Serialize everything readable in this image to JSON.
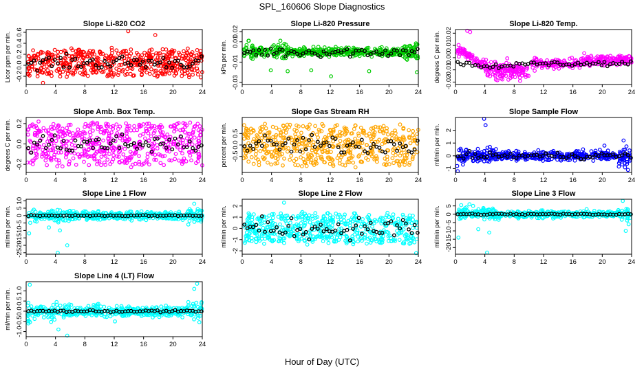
{
  "figure": {
    "title": "SPL_160606  Slope Diagnostics",
    "xlabel": "Hour of Day (UTC)"
  },
  "colors": {
    "red": "#ff0000",
    "green": "#00cc00",
    "magenta": "#ff00ff",
    "orange": "#ffa500",
    "blue": "#0000ff",
    "cyan": "#00ffff",
    "black": "#000000"
  },
  "chart_data": [
    {
      "type": "scatter",
      "title": "Slope Li-820 CO2",
      "ylabel": "Licor ppm per min.",
      "xlim": [
        0,
        24
      ],
      "ylim": [
        -0.35,
        0.65
      ],
      "yticks": [
        "-0.2",
        "0.0",
        "0.2",
        "0.4",
        "0.6"
      ],
      "ytick_values": [
        -0.2,
        0,
        0.2,
        0.4,
        0.6
      ],
      "xticks": [
        0,
        4,
        8,
        12,
        16,
        20,
        24
      ],
      "color": "red",
      "pattern": "uniform",
      "center": 0.05,
      "spread": 0.24,
      "outliers": [
        [
          13.9,
          0.62
        ],
        [
          17.6,
          0.55
        ],
        [
          2.3,
          -0.32
        ],
        [
          23.8,
          -0.22
        ]
      ],
      "black_center": 0.05,
      "black_spread": 0.12
    },
    {
      "type": "scatter",
      "title": "Slope Li-820 Pressure",
      "ylabel": "kPa per min.",
      "xlim": [
        0,
        24
      ],
      "ylim": [
        -0.032,
        0.022
      ],
      "yticks": [
        "-0.03",
        "-0.01",
        "0.01",
        "0.02"
      ],
      "ytick_values": [
        -0.03,
        -0.01,
        0.01,
        0.02
      ],
      "xticks": [
        0,
        4,
        8,
        12,
        16,
        20,
        24
      ],
      "color": "green",
      "pattern": "flat",
      "center": 0.0,
      "spread": 0.004,
      "outliers": [
        [
          3.9,
          -0.018
        ],
        [
          6.2,
          -0.019
        ],
        [
          9.4,
          -0.018
        ],
        [
          12.1,
          -0.024
        ],
        [
          17.3,
          -0.019
        ],
        [
          23.8,
          -0.02
        ],
        [
          0.9,
          0.011
        ],
        [
          5.2,
          0.011
        ]
      ],
      "black_center": 0.0,
      "black_spread": 0.005
    },
    {
      "type": "scatter",
      "title": "Slope Li-820 Temp.",
      "ylabel": "degrees C per min.",
      "xlim": [
        0,
        24
      ],
      "ylim": [
        -0.022,
        0.023
      ],
      "yticks": [
        "-0.02",
        "-0.01",
        "0.00",
        "0.01",
        "0.02"
      ],
      "ytick_values": [
        -0.02,
        -0.01,
        0,
        0.01,
        0.02
      ],
      "xticks": [
        0,
        4,
        8,
        12,
        16,
        20,
        24
      ],
      "color": "magenta",
      "pattern": "temp",
      "center": -0.005,
      "spread": 0.004,
      "outliers": [
        [
          1.6,
          0.022
        ],
        [
          2.0,
          0.021
        ],
        [
          5.5,
          -0.018
        ],
        [
          8.8,
          -0.019
        ]
      ],
      "black_center": -0.005,
      "black_spread": 0.002
    },
    {
      "type": "scatter",
      "title": "Slope Amb. Box Temp.",
      "ylabel": "degrees C per min.",
      "xlim": [
        0,
        24
      ],
      "ylim": [
        -0.28,
        0.26
      ],
      "yticks": [
        "-0.2",
        "0.0",
        "0.2"
      ],
      "ytick_values": [
        -0.2,
        0,
        0.2
      ],
      "xticks": [
        0,
        4,
        8,
        12,
        16,
        20,
        24
      ],
      "color": "magenta",
      "pattern": "uniform",
      "center": 0.0,
      "spread": 0.2,
      "outliers": [],
      "black_center": 0.0,
      "black_spread": 0.1
    },
    {
      "type": "scatter",
      "title": "Slope Gas Stream RH",
      "ylabel": "percent per min.",
      "xlim": [
        0,
        24
      ],
      "ylim": [
        -1.2,
        1.2
      ],
      "yticks": [
        "-0.5",
        "0.0",
        "0.5"
      ],
      "ytick_values": [
        -0.5,
        0,
        0.5
      ],
      "xticks": [
        0,
        4,
        8,
        12,
        16,
        20,
        24
      ],
      "color": "orange",
      "pattern": "uniform",
      "center": 0.0,
      "spread": 0.85,
      "outliers": [],
      "black_center": 0.0,
      "black_spread": 0.4
    },
    {
      "type": "scatter",
      "title": "Slope Sample Flow",
      "ylabel": "ml/min per min.",
      "xlim": [
        0,
        24
      ],
      "ylim": [
        -1.3,
        3.0
      ],
      "yticks": [
        "-1",
        "0",
        "1",
        "2"
      ],
      "ytick_values": [
        -1,
        0,
        1,
        2
      ],
      "xticks": [
        0,
        4,
        8,
        12,
        16,
        20,
        24
      ],
      "color": "blue",
      "pattern": "flat",
      "center": 0.0,
      "spread": 0.35,
      "outliers": [
        [
          3.9,
          2.9
        ],
        [
          4.1,
          2.4
        ],
        [
          0.3,
          -1.2
        ],
        [
          23.5,
          -1.1
        ],
        [
          23.1,
          -0.9
        ],
        [
          22.9,
          1.2
        ],
        [
          20.3,
          0.8
        ]
      ],
      "black_center": 0.0,
      "black_spread": 0.25
    },
    {
      "type": "scatter",
      "title": "Slope Line 1 Flow",
      "ylabel": "ml/min per min.",
      "xlim": [
        0,
        24
      ],
      "ylim": [
        -26,
        11
      ],
      "yticks": [
        "-25",
        "-20",
        "-15",
        "-10",
        "-5",
        "0",
        "5",
        "10"
      ],
      "ytick_values": [
        -25,
        -20,
        -15,
        -10,
        -5,
        0,
        5,
        10
      ],
      "xticks": [
        0,
        4,
        8,
        12,
        16,
        20,
        24
      ],
      "color": "cyan",
      "pattern": "flat",
      "center": 0.0,
      "spread": 2.5,
      "outliers": [
        [
          0.4,
          -12
        ],
        [
          4.3,
          -25
        ],
        [
          4.6,
          -10
        ],
        [
          5.6,
          -20
        ],
        [
          3.1,
          -8
        ],
        [
          22.1,
          -6
        ],
        [
          22.9,
          8
        ],
        [
          23.6,
          -3
        ]
      ],
      "black_center": 0.0,
      "black_spread": 0.4
    },
    {
      "type": "scatter",
      "title": "Slope Line 2 Flow",
      "ylabel": "ml/min per min.",
      "xlim": [
        0,
        24
      ],
      "ylim": [
        -2.3,
        2.6
      ],
      "yticks": [
        "-2",
        "-1",
        "0",
        "1",
        "2"
      ],
      "ytick_values": [
        -2,
        -1,
        0,
        1,
        2
      ],
      "xticks": [
        0,
        4,
        8,
        12,
        16,
        20,
        24
      ],
      "color": "cyan",
      "pattern": "uniform",
      "center": 0.0,
      "spread": 1.3,
      "outliers": [
        [
          23.7,
          -2.2
        ],
        [
          5.7,
          2.3
        ]
      ],
      "black_center": 0.0,
      "black_spread": 0.9
    },
    {
      "type": "scatter",
      "title": "Slope Line 3 Flow",
      "ylabel": "ml/min per min.",
      "xlim": [
        0,
        24
      ],
      "ylim": [
        -24,
        9
      ],
      "yticks": [
        "-20",
        "-15",
        "-10",
        "-5",
        "0",
        "5"
      ],
      "ytick_values": [
        -20,
        -15,
        -10,
        -5,
        0,
        5
      ],
      "xticks": [
        0,
        4,
        8,
        12,
        16,
        20,
        24
      ],
      "color": "cyan",
      "pattern": "flat",
      "center": 0.0,
      "spread": 2.0,
      "outliers": [
        [
          0.4,
          -14
        ],
        [
          4.3,
          -23
        ],
        [
          4.6,
          -11
        ],
        [
          3.1,
          -9
        ],
        [
          1.9,
          6
        ],
        [
          2.4,
          5
        ],
        [
          22.8,
          8
        ],
        [
          23.6,
          -6
        ],
        [
          23.2,
          -10
        ]
      ],
      "black_center": 0.0,
      "black_spread": 0.5
    },
    {
      "type": "scatter",
      "title": "Slope Line 4 (LT) Flow",
      "ylabel": "ml/min per min.",
      "xlim": [
        0,
        24
      ],
      "ylim": [
        -1.25,
        1.45
      ],
      "yticks": [
        "-1.0",
        "-0.5",
        "0.0",
        "0.5",
        "1.0"
      ],
      "ytick_values": [
        -1,
        -0.5,
        0,
        0.5,
        1
      ],
      "xticks": [
        0,
        4,
        8,
        12,
        16,
        20,
        24
      ],
      "color": "cyan",
      "pattern": "flat",
      "center": 0.0,
      "spread": 0.25,
      "outliers": [
        [
          0.5,
          1.3
        ],
        [
          5.6,
          -1.2
        ],
        [
          4.4,
          -0.9
        ],
        [
          22.9,
          1.1
        ],
        [
          23.3,
          1.35
        ],
        [
          0.3,
          -0.6
        ],
        [
          12.1,
          -0.5
        ]
      ],
      "black_center": 0.0,
      "black_spread": 0.05
    }
  ]
}
